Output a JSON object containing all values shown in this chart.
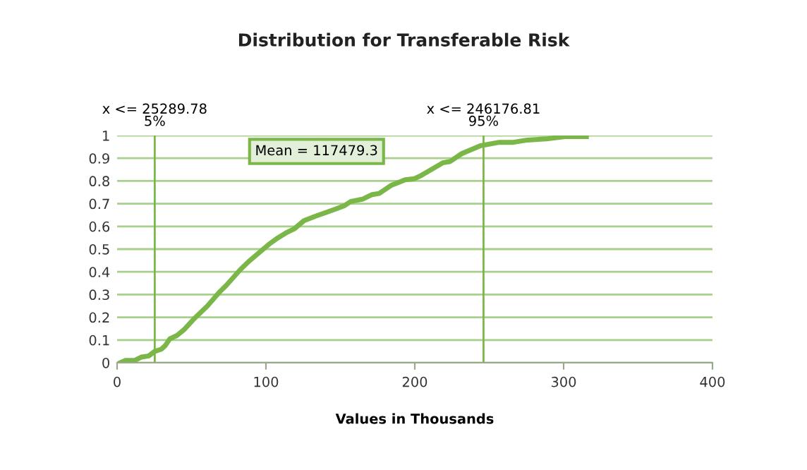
{
  "chart_data": {
    "type": "line",
    "title": "Distribution for Transferable Risk",
    "xlabel": "Values in Thousands",
    "series": [
      {
        "color": "#7ab648",
        "x": [
          2.2,
          5.4,
          11.7,
          16.4,
          21.2,
          25.3,
          29.8,
          32.3,
          35.4,
          40.2,
          44.9,
          51.2,
          60.7,
          68.6,
          73.3,
          82.8,
          89.2,
          95.5,
          101.8,
          108.1,
          114.5,
          119.2,
          125.5,
          133.4,
          139.8,
          146.1,
          152.4,
          157.1,
          165,
          171.4,
          176.1,
          184,
          193.5,
          199.8,
          204.6,
          218.8,
          223.5,
          231.5,
          244.1,
          256.8,
          266.2,
          275.7,
          288.4,
          301,
          315.3
        ],
        "values": [
          0,
          0.01,
          0.01,
          0.025,
          0.03,
          0.05,
          0.06,
          0.075,
          0.105,
          0.12,
          0.145,
          0.19,
          0.25,
          0.31,
          0.34,
          0.41,
          0.45,
          0.485,
          0.52,
          0.55,
          0.575,
          0.59,
          0.625,
          0.645,
          0.66,
          0.675,
          0.69,
          0.71,
          0.72,
          0.74,
          0.745,
          0.78,
          0.805,
          0.81,
          0.825,
          0.88,
          0.885,
          0.92,
          0.955,
          0.97,
          0.97,
          0.98,
          0.985,
          0.995,
          0.995
        ]
      }
    ],
    "xlim": [
      0,
      400
    ],
    "xticks": [
      0,
      100,
      200,
      300,
      400
    ],
    "ylim": [
      0,
      1
    ],
    "yticks": [
      0,
      0.1,
      0.2,
      0.3,
      0.4,
      0.5,
      0.6,
      0.7,
      0.8,
      0.9,
      1
    ],
    "ref_lines": [
      {
        "axis": "x",
        "value": 25.28978,
        "label": "x <= 25289.78\n5%",
        "color": "#7ab648"
      },
      {
        "axis": "x",
        "value": 246.17681,
        "label": "x <= 246176.81\n95%",
        "color": "#7ab648"
      }
    ],
    "annotations": [
      "Mean = 117479.3"
    ],
    "grid": "y",
    "legend": false,
    "marker": "none",
    "line_style": "solid"
  }
}
